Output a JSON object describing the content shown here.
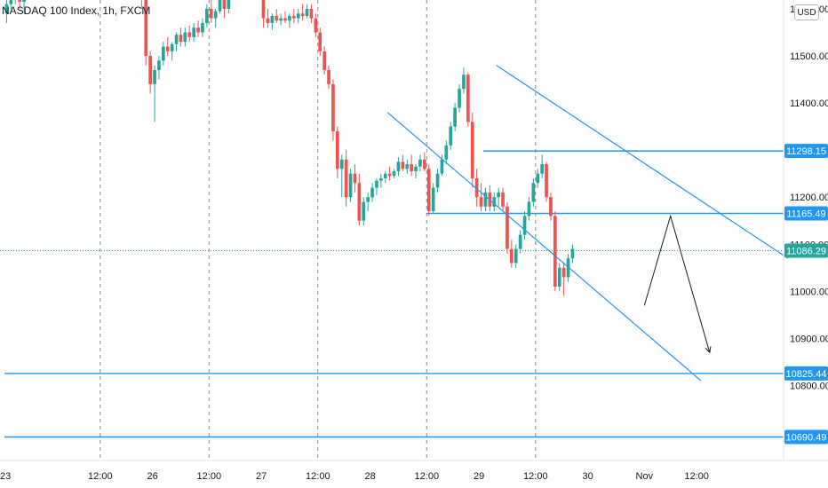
{
  "chart_data": {
    "type": "candlestick",
    "title": "NASDAQ 100 Index, 1h, FXCM",
    "currency_button": "USD",
    "y_axis": {
      "range": [
        10650,
        11700
      ],
      "tick_labels": [
        "11600.00",
        "11500.00",
        "11400.00",
        "11200.00",
        "11100.00",
        "11000.00",
        "10900.00",
        "10800.00"
      ]
    },
    "x_axis": {
      "tick_labels": [
        "23",
        "12:00",
        "26",
        "12:00",
        "27",
        "12:00",
        "28",
        "12:00",
        "29",
        "12:00",
        "30",
        "Nov",
        "12:00"
      ]
    },
    "session_dividers_bar_index": [
      22,
      47,
      72,
      97,
      122
    ],
    "horizontal_levels": [
      {
        "label": "11298.15",
        "value": 11298.15,
        "color": "#2196f3",
        "start_bar": 110
      },
      {
        "label": "11165.49",
        "value": 11165.49,
        "color": "#2196f3",
        "start_bar": 97
      },
      {
        "label": "10825.44",
        "value": 10825.44,
        "color": "#2196f3",
        "start_bar": 0
      },
      {
        "label": "10690.49",
        "value": 10690.49,
        "color": "#2196f3",
        "start_bar": 0
      }
    ],
    "last_price": {
      "label": "11086.29",
      "value": 11086.29,
      "color": "#26a69a"
    },
    "bull_color": "#26a69a",
    "bear_color": "#ef5350",
    "candles": [
      [
        11590,
        11620,
        11570,
        11610
      ],
      [
        11610,
        11640,
        11600,
        11625
      ],
      [
        11625,
        11650,
        11610,
        11640
      ],
      [
        11640,
        11660,
        11600,
        11615
      ],
      [
        11615,
        11640,
        11590,
        11630
      ],
      [
        11630,
        11665,
        11620,
        11655
      ],
      [
        11655,
        11680,
        11640,
        11660
      ],
      [
        11660,
        11690,
        11650,
        11680
      ],
      [
        11680,
        11705,
        11670,
        11700
      ],
      [
        11700,
        11710,
        11680,
        11695
      ],
      [
        11695,
        11700,
        11660,
        11670
      ],
      [
        11670,
        11690,
        11660,
        11685
      ],
      [
        11685,
        11700,
        11675,
        11695
      ],
      [
        11695,
        11710,
        11690,
        11705
      ],
      [
        11705,
        11720,
        11690,
        11700
      ],
      [
        11700,
        11710,
        11650,
        11660
      ],
      [
        11660,
        11670,
        11625,
        11630
      ],
      [
        11630,
        11660,
        11620,
        11650
      ],
      [
        11650,
        11670,
        11640,
        11665
      ],
      [
        11665,
        11680,
        11645,
        11650
      ],
      [
        11650,
        11665,
        11630,
        11640
      ],
      [
        11640,
        11700,
        11630,
        11690
      ],
      [
        11690,
        11700,
        11660,
        11670
      ],
      [
        11670,
        11680,
        11640,
        11650
      ],
      [
        11650,
        11660,
        11630,
        11635
      ],
      [
        11635,
        11650,
        11620,
        11645
      ],
      [
        11645,
        11660,
        11635,
        11640
      ],
      [
        11640,
        11650,
        11630,
        11635
      ],
      [
        11635,
        11645,
        11620,
        11640
      ],
      [
        11640,
        11660,
        11630,
        11650
      ],
      [
        11650,
        11690,
        11640,
        11680
      ],
      [
        11680,
        11720,
        11600,
        11620
      ],
      [
        11620,
        11630,
        11480,
        11500
      ],
      [
        11500,
        11510,
        11420,
        11440
      ],
      [
        11440,
        11480,
        11360,
        11470
      ],
      [
        11470,
        11500,
        11450,
        11490
      ],
      [
        11490,
        11530,
        11480,
        11520
      ],
      [
        11520,
        11540,
        11500,
        11510
      ],
      [
        11510,
        11530,
        11490,
        11525
      ],
      [
        11525,
        11550,
        11510,
        11545
      ],
      [
        11545,
        11560,
        11520,
        11530
      ],
      [
        11530,
        11560,
        11520,
        11550
      ],
      [
        11550,
        11565,
        11530,
        11540
      ],
      [
        11540,
        11570,
        11530,
        11560
      ],
      [
        11560,
        11575,
        11540,
        11550
      ],
      [
        11550,
        11580,
        11540,
        11570
      ],
      [
        11570,
        11610,
        11560,
        11600
      ],
      [
        11600,
        11620,
        11570,
        11580
      ],
      [
        11580,
        11600,
        11560,
        11595
      ],
      [
        11595,
        11640,
        11590,
        11630
      ],
      [
        11630,
        11660,
        11580,
        11600
      ],
      [
        11600,
        11640,
        11590,
        11630
      ],
      [
        11630,
        11660,
        11620,
        11650
      ],
      [
        11650,
        11690,
        11640,
        11680
      ],
      [
        11680,
        11700,
        11660,
        11670
      ],
      [
        11670,
        11720,
        11660,
        11710
      ],
      [
        11710,
        11720,
        11680,
        11690
      ],
      [
        11690,
        11710,
        11650,
        11660
      ],
      [
        11660,
        11700,
        11650,
        11690
      ],
      [
        11690,
        11700,
        11560,
        11580
      ],
      [
        11580,
        11600,
        11560,
        11570
      ],
      [
        11570,
        11590,
        11555,
        11585
      ],
      [
        11585,
        11600,
        11570,
        11575
      ],
      [
        11575,
        11590,
        11565,
        11580
      ],
      [
        11580,
        11595,
        11570,
        11575
      ],
      [
        11575,
        11590,
        11560,
        11585
      ],
      [
        11585,
        11600,
        11570,
        11580
      ],
      [
        11580,
        11600,
        11570,
        11590
      ],
      [
        11590,
        11610,
        11575,
        11585
      ],
      [
        11585,
        11610,
        11580,
        11600
      ],
      [
        11600,
        11610,
        11570,
        11580
      ],
      [
        11580,
        11590,
        11540,
        11550
      ],
      [
        11550,
        11560,
        11500,
        11510
      ],
      [
        11510,
        11520,
        11460,
        11470
      ],
      [
        11470,
        11480,
        11430,
        11440
      ],
      [
        11440,
        11450,
        11320,
        11340
      ],
      [
        11340,
        11350,
        11240,
        11260
      ],
      [
        11260,
        11290,
        11200,
        11280
      ],
      [
        11280,
        11300,
        11180,
        11200
      ],
      [
        11200,
        11260,
        11190,
        11250
      ],
      [
        11250,
        11270,
        11210,
        11230
      ],
      [
        11230,
        11250,
        11140,
        11150
      ],
      [
        11150,
        11200,
        11140,
        11190
      ],
      [
        11190,
        11210,
        11170,
        11200
      ],
      [
        11200,
        11230,
        11190,
        11220
      ],
      [
        11220,
        11240,
        11205,
        11235
      ],
      [
        11235,
        11250,
        11220,
        11240
      ],
      [
        11240,
        11255,
        11230,
        11250
      ],
      [
        11250,
        11265,
        11235,
        11245
      ],
      [
        11245,
        11260,
        11240,
        11255
      ],
      [
        11255,
        11285,
        11245,
        11275
      ],
      [
        11275,
        11290,
        11255,
        11260
      ],
      [
        11260,
        11280,
        11250,
        11270
      ],
      [
        11270,
        11290,
        11245,
        11255
      ],
      [
        11255,
        11270,
        11240,
        11265
      ],
      [
        11265,
        11290,
        11255,
        11280
      ],
      [
        11280,
        11295,
        11255,
        11260
      ],
      [
        11260,
        11270,
        11160,
        11170
      ],
      [
        11170,
        11230,
        11165,
        11220
      ],
      [
        11220,
        11260,
        11210,
        11250
      ],
      [
        11250,
        11290,
        11245,
        11280
      ],
      [
        11280,
        11320,
        11270,
        11310
      ],
      [
        11310,
        11360,
        11300,
        11350
      ],
      [
        11350,
        11400,
        11340,
        11390
      ],
      [
        11390,
        11440,
        11380,
        11430
      ],
      [
        11430,
        11475,
        11420,
        11460
      ],
      [
        11460,
        11465,
        11350,
        11360
      ],
      [
        11360,
        11380,
        11220,
        11240
      ],
      [
        11240,
        11260,
        11180,
        11200
      ],
      [
        11200,
        11230,
        11170,
        11180
      ],
      [
        11180,
        11220,
        11170,
        11210
      ],
      [
        11210,
        11225,
        11170,
        11180
      ],
      [
        11180,
        11210,
        11170,
        11200
      ],
      [
        11200,
        11220,
        11180,
        11210
      ],
      [
        11210,
        11220,
        11170,
        11180
      ],
      [
        11180,
        11190,
        11080,
        11090
      ],
      [
        11090,
        11110,
        11050,
        11060
      ],
      [
        11060,
        11100,
        11050,
        11090
      ],
      [
        11090,
        11130,
        11080,
        11120
      ],
      [
        11120,
        11170,
        11110,
        11160
      ],
      [
        11160,
        11200,
        11150,
        11190
      ],
      [
        11190,
        11240,
        11180,
        11230
      ],
      [
        11230,
        11260,
        11220,
        11250
      ],
      [
        11250,
        11290,
        11240,
        11270
      ],
      [
        11270,
        11275,
        11190,
        11200
      ],
      [
        11200,
        11210,
        11150,
        11160
      ],
      [
        11160,
        11170,
        11000,
        11010
      ],
      [
        11010,
        11060,
        11000,
        11050
      ],
      [
        11050,
        11060,
        10990,
        11030
      ],
      [
        11030,
        11080,
        11020,
        11070
      ],
      [
        11070,
        11100,
        11060,
        11090
      ]
    ],
    "annotations": [
      {
        "type": "trend_channel",
        "color": "#2196f3",
        "lines": [
          [
            [
              88,
              11380
            ],
            [
              160,
              10810
            ]
          ],
          [
            [
              113,
              11480
            ],
            [
              180,
              11070
            ]
          ]
        ]
      },
      {
        "type": "arrow_path",
        "color": "#131722",
        "points": [
          [
            147,
            10970
          ],
          [
            153,
            11160
          ],
          [
            162,
            10870
          ]
        ]
      }
    ]
  }
}
